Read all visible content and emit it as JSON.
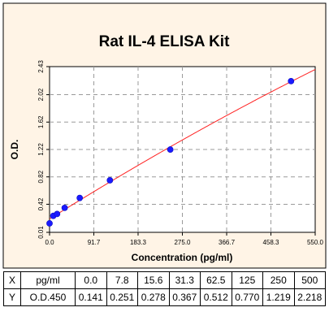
{
  "colors": {
    "panel_bg": "#fff4e6",
    "plot_bg": "#ffffff",
    "curve": "#ff2222",
    "points": "#1a1aff",
    "grid": "#9a9a9a"
  },
  "chart_data": {
    "type": "scatter",
    "title": "Rat IL-4 ELISA Kit",
    "xlabel": "Concentration (pg/ml)",
    "ylabel": "O.D.",
    "xlim": [
      0.0,
      550.0
    ],
    "ylim": [
      0.01,
      2.43
    ],
    "x_ticks": [
      "0.0",
      "91.7",
      "183.3",
      "275.0",
      "366.7",
      "458.3",
      "550.0"
    ],
    "y_ticks": [
      "0.01",
      "0.42",
      "0.82",
      "1.22",
      "1.62",
      "2.02",
      "2.43"
    ],
    "grid": true,
    "grid_style": "dashed",
    "series": [
      {
        "x": [
          0.0,
          7.8,
          15.6,
          31.3,
          62.5,
          125,
          250,
          500
        ],
        "y": [
          0.141,
          0.251,
          0.278,
          0.367,
          0.512,
          0.77,
          1.219,
          2.218
        ]
      }
    ],
    "fit_curve": true
  },
  "table": {
    "rows": [
      {
        "axis": "X",
        "unit": "pg/ml",
        "values": [
          "0.0",
          "7.8",
          "15.6",
          "31.3",
          "62.5",
          "125",
          "250",
          "500"
        ]
      },
      {
        "axis": "Y",
        "unit": "O.D.450",
        "values": [
          "0.141",
          "0.251",
          "0.278",
          "0.367",
          "0.512",
          "0.770",
          "1.219",
          "2.218"
        ]
      }
    ]
  }
}
